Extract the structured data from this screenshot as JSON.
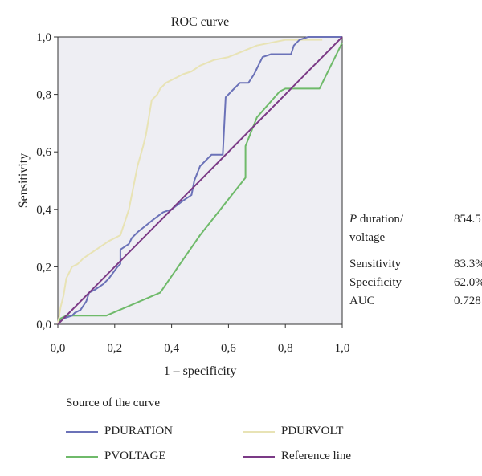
{
  "chart_data": {
    "type": "line",
    "title": "ROC curve",
    "xlabel": "1 – specificity",
    "ylabel": "Sensitivity",
    "xlim": [
      0,
      1
    ],
    "ylim": [
      0,
      1
    ],
    "xticks": [
      "0,0",
      "0,2",
      "0,4",
      "0,6",
      "0,8",
      "1,0"
    ],
    "yticks": [
      "0,0",
      "0,2",
      "0,4",
      "0,6",
      "0,8",
      "1,0"
    ],
    "grid": false,
    "legend_title": "Source of the curve",
    "series": [
      {
        "name": "PDURATION",
        "color": "#6b72b8",
        "points": [
          [
            0,
            0
          ],
          [
            0.02,
            0.02
          ],
          [
            0.05,
            0.03
          ],
          [
            0.06,
            0.04
          ],
          [
            0.08,
            0.05
          ],
          [
            0.1,
            0.08
          ],
          [
            0.11,
            0.11
          ],
          [
            0.13,
            0.12
          ],
          [
            0.16,
            0.14
          ],
          [
            0.18,
            0.16
          ],
          [
            0.21,
            0.2
          ],
          [
            0.22,
            0.21
          ],
          [
            0.22,
            0.26
          ],
          [
            0.25,
            0.28
          ],
          [
            0.26,
            0.3
          ],
          [
            0.28,
            0.32
          ],
          [
            0.33,
            0.36
          ],
          [
            0.37,
            0.39
          ],
          [
            0.4,
            0.4
          ],
          [
            0.44,
            0.43
          ],
          [
            0.47,
            0.45
          ],
          [
            0.48,
            0.5
          ],
          [
            0.5,
            0.55
          ],
          [
            0.54,
            0.59
          ],
          [
            0.58,
            0.59
          ],
          [
            0.59,
            0.79
          ],
          [
            0.61,
            0.81
          ],
          [
            0.64,
            0.84
          ],
          [
            0.67,
            0.84
          ],
          [
            0.69,
            0.87
          ],
          [
            0.71,
            0.91
          ],
          [
            0.72,
            0.93
          ],
          [
            0.75,
            0.94
          ],
          [
            0.8,
            0.94
          ],
          [
            0.82,
            0.94
          ],
          [
            0.83,
            0.97
          ],
          [
            0.85,
            0.99
          ],
          [
            0.88,
            1.0
          ],
          [
            1.0,
            1.0
          ]
        ]
      },
      {
        "name": "PDURVOLT",
        "color": "#e8e3b5",
        "points": [
          [
            0,
            0
          ],
          [
            0.01,
            0.06
          ],
          [
            0.02,
            0.1
          ],
          [
            0.03,
            0.16
          ],
          [
            0.04,
            0.18
          ],
          [
            0.05,
            0.2
          ],
          [
            0.07,
            0.21
          ],
          [
            0.09,
            0.23
          ],
          [
            0.12,
            0.25
          ],
          [
            0.15,
            0.27
          ],
          [
            0.18,
            0.29
          ],
          [
            0.2,
            0.3
          ],
          [
            0.22,
            0.31
          ],
          [
            0.23,
            0.34
          ],
          [
            0.25,
            0.4
          ],
          [
            0.27,
            0.5
          ],
          [
            0.28,
            0.55
          ],
          [
            0.3,
            0.62
          ],
          [
            0.31,
            0.66
          ],
          [
            0.32,
            0.72
          ],
          [
            0.33,
            0.78
          ],
          [
            0.35,
            0.8
          ],
          [
            0.36,
            0.82
          ],
          [
            0.37,
            0.83
          ],
          [
            0.38,
            0.84
          ],
          [
            0.4,
            0.85
          ],
          [
            0.42,
            0.86
          ],
          [
            0.44,
            0.87
          ],
          [
            0.47,
            0.88
          ],
          [
            0.5,
            0.9
          ],
          [
            0.55,
            0.92
          ],
          [
            0.6,
            0.93
          ],
          [
            0.65,
            0.95
          ],
          [
            0.7,
            0.97
          ],
          [
            0.75,
            0.98
          ],
          [
            0.8,
            0.99
          ],
          [
            0.85,
            0.99
          ],
          [
            0.93,
            0.99
          ]
        ]
      },
      {
        "name": "PVOLTAGE",
        "color": "#6fba6a",
        "points": [
          [
            0,
            0
          ],
          [
            0.01,
            0.02
          ],
          [
            0.03,
            0.03
          ],
          [
            0.17,
            0.03
          ],
          [
            0.36,
            0.11
          ],
          [
            0.5,
            0.31
          ],
          [
            0.66,
            0.51
          ],
          [
            0.66,
            0.62
          ],
          [
            0.7,
            0.72
          ],
          [
            0.78,
            0.81
          ],
          [
            0.8,
            0.82
          ],
          [
            0.92,
            0.82
          ],
          [
            1.0,
            0.98
          ]
        ]
      },
      {
        "name": "Reference line",
        "color": "#7b3a86",
        "points": [
          [
            0,
            0
          ],
          [
            1,
            1
          ]
        ]
      }
    ]
  },
  "stats": {
    "pdv_label_italic": "P",
    "pdv_label_rest": " duration/",
    "pdv_label_line2": "voltage",
    "pdv_value": "854.5",
    "sensitivity_label": "Sensitivity",
    "sensitivity_value": "83.3%",
    "specificity_label": "Specificity",
    "specificity_value": "62.0%",
    "auc_label": "AUC",
    "auc_value": "0.728"
  }
}
